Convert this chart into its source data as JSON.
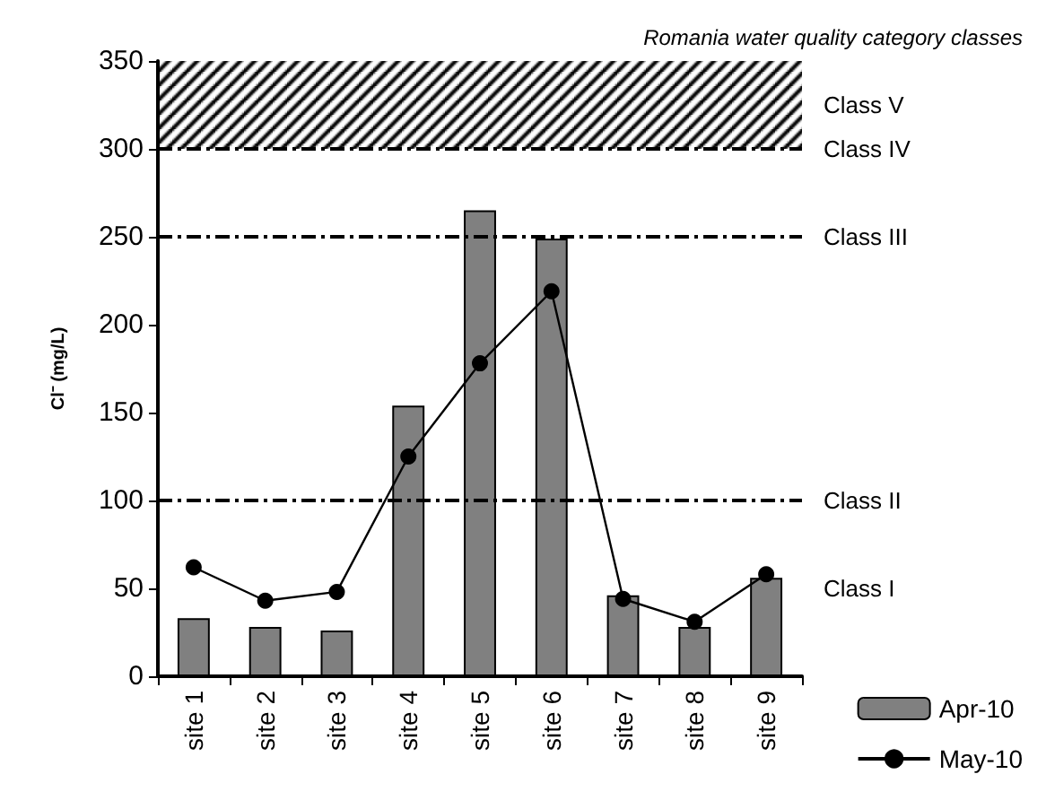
{
  "chart_data": {
    "type": "bar",
    "title": "Romania water quality category classes",
    "ylabel": "Cl⁻ (mg/L)",
    "categories": [
      "site 1",
      "site 2",
      "site 3",
      "site 4",
      "site 5",
      "site 6",
      "site 7",
      "site 8",
      "site 9"
    ],
    "series": [
      {
        "name": "Apr-10",
        "color": "#808080",
        "values": [
          33,
          28,
          26,
          154,
          265,
          249,
          46,
          28,
          56
        ]
      },
      {
        "name": "May-10",
        "type": "line",
        "color": "#000000",
        "marker": "circle",
        "values": [
          62,
          43,
          48,
          125,
          178,
          219,
          44,
          31,
          58
        ]
      }
    ],
    "ylim": [
      0,
      350
    ],
    "yticks": [
      0,
      50,
      100,
      150,
      200,
      250,
      300,
      350
    ],
    "ref_lines": [
      {
        "axis": "y",
        "value": 300,
        "label": "Class IV",
        "line_style": "dashed",
        "color": "#000000"
      },
      {
        "axis": "y",
        "value": 250,
        "label": "Class III",
        "line_style": "dashed",
        "color": "#000000"
      },
      {
        "axis": "y",
        "value": 100,
        "label": "Class II",
        "line_style": "dashed",
        "color": "#000000"
      }
    ],
    "bands": [
      {
        "axis": "y",
        "from": 300,
        "to": 350,
        "label": "Class V",
        "color": "#000000"
      }
    ],
    "annotations": [
      "Class I"
    ],
    "grid": false,
    "legend": "bottom right"
  }
}
